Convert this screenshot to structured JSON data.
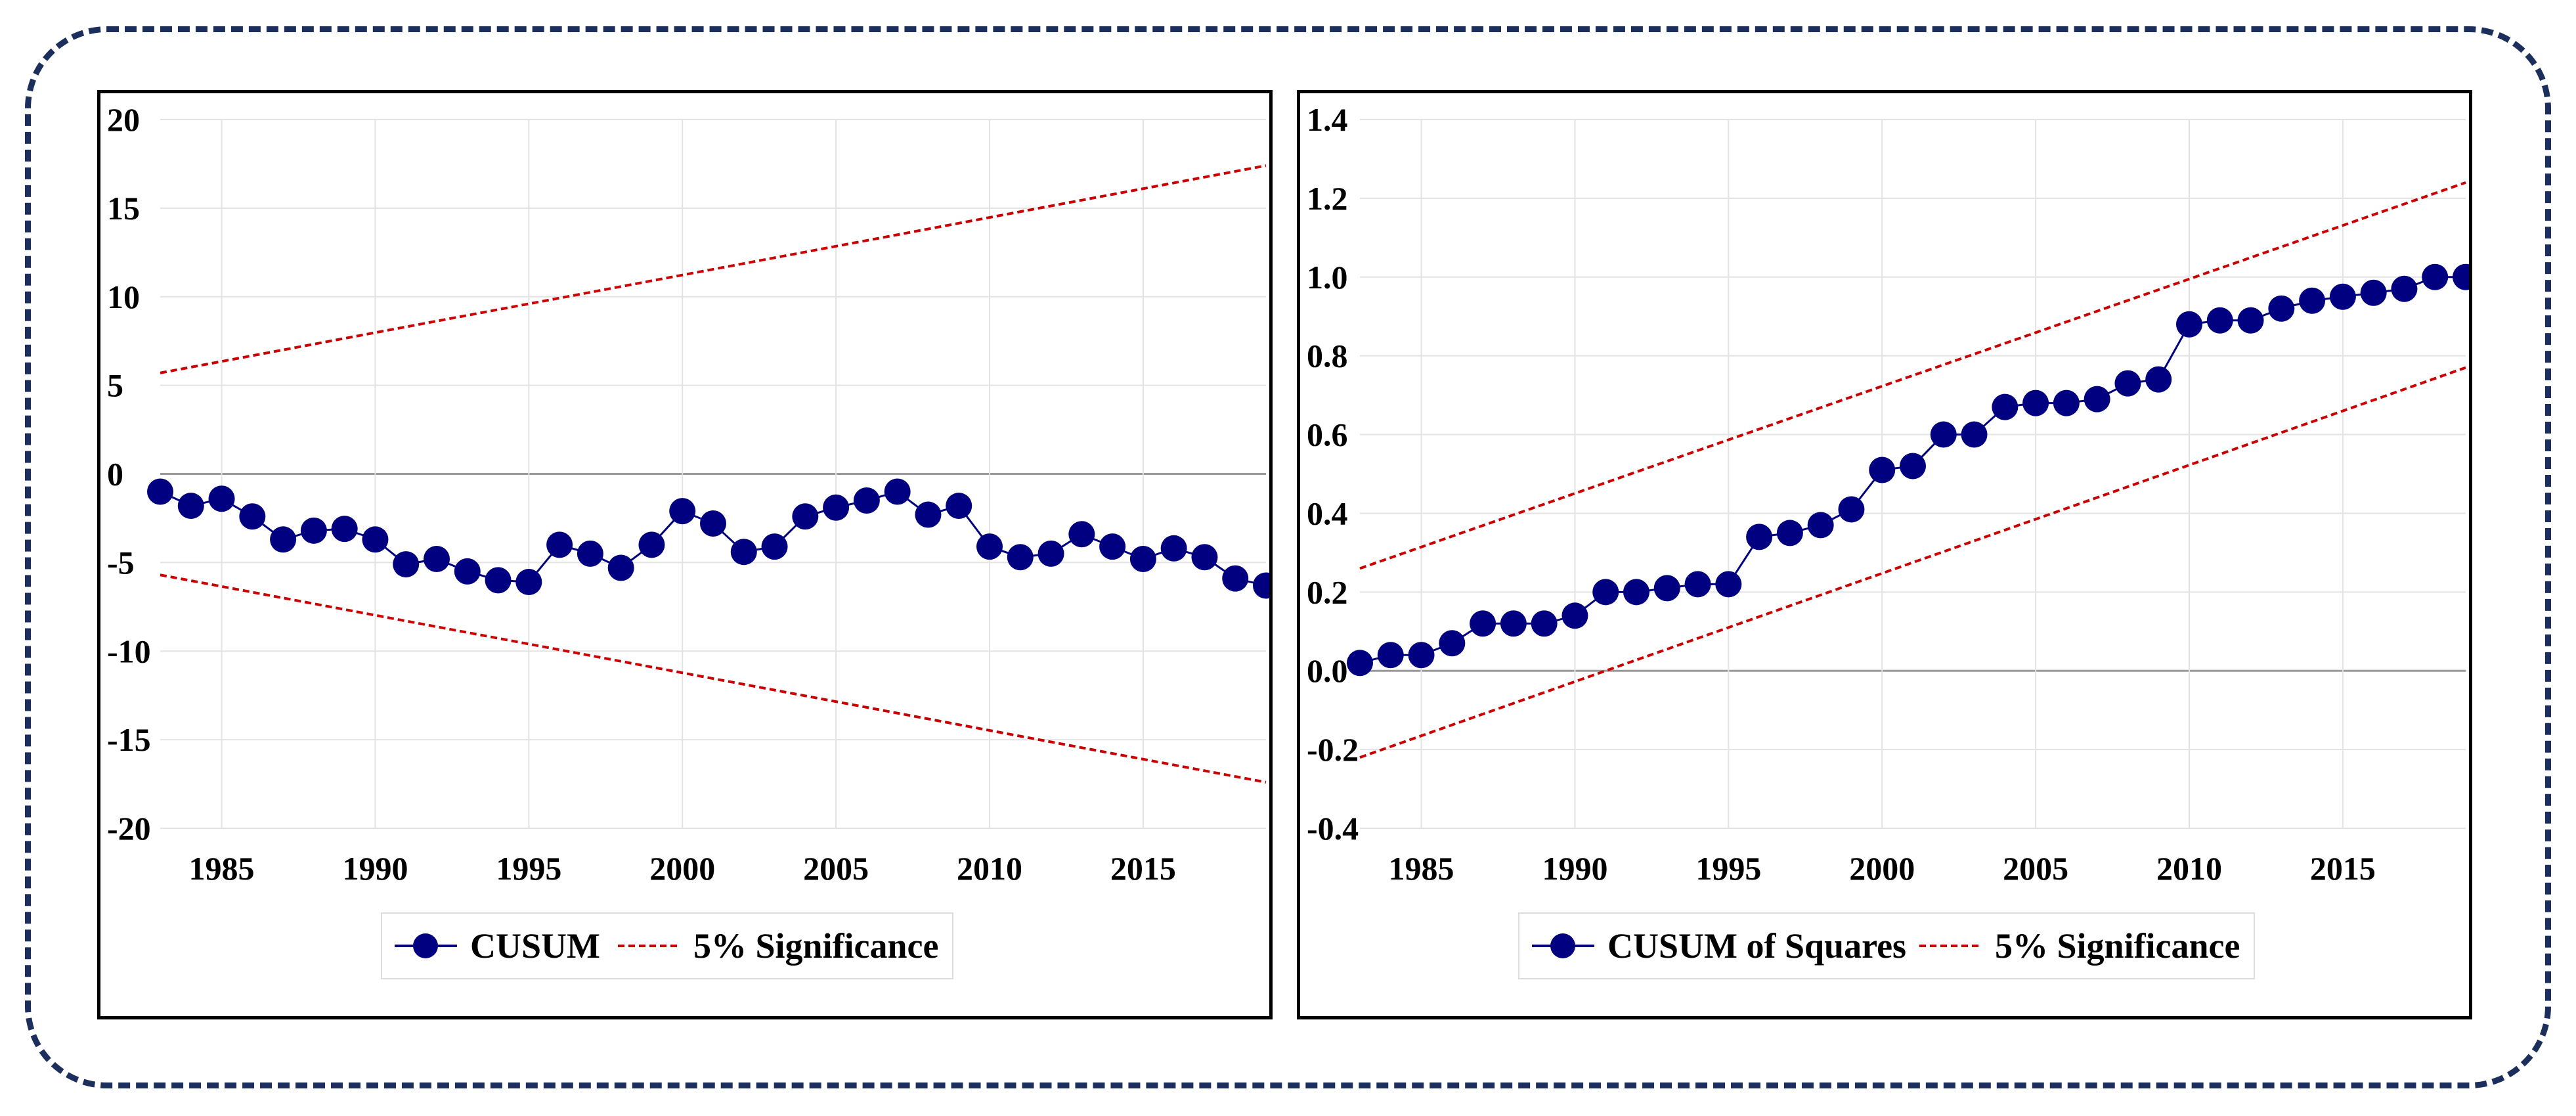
{
  "chart_data": [
    {
      "type": "line",
      "title": "",
      "xlabel": "",
      "ylabel": "",
      "xlim": [
        1983,
        2019
      ],
      "ylim": [
        -20,
        20
      ],
      "yticks": [
        20,
        15,
        10,
        5,
        0,
        -5,
        -10,
        -15,
        -20
      ],
      "ytick_labels": [
        "20",
        "15",
        "10",
        "5",
        "0",
        "-5",
        "-10",
        "-15",
        "-20"
      ],
      "xticks": [
        1985,
        1990,
        1995,
        2000,
        2005,
        2010,
        2015
      ],
      "xtick_labels": [
        "1985",
        "1990",
        "1995",
        "2000",
        "2005",
        "2010",
        "2015"
      ],
      "grid": true,
      "legend": [
        "CUSUM",
        "5% Significance"
      ],
      "legend_position": "bottom-center",
      "x": [
        1983,
        1984,
        1985,
        1986,
        1987,
        1988,
        1989,
        1990,
        1991,
        1992,
        1993,
        1994,
        1995,
        1996,
        1997,
        1998,
        1999,
        2000,
        2001,
        2002,
        2003,
        2004,
        2005,
        2006,
        2007,
        2008,
        2009,
        2010,
        2011,
        2012,
        2013,
        2014,
        2015,
        2016,
        2017,
        2018,
        2019
      ],
      "series": [
        {
          "name": "CUSUM",
          "color": "#000080",
          "values": [
            -1.0,
            -1.8,
            -1.4,
            -2.4,
            -3.7,
            -3.2,
            -3.1,
            -3.7,
            -5.1,
            -4.8,
            -5.5,
            -6.0,
            -6.1,
            -4.0,
            -4.5,
            -5.3,
            -4.0,
            -2.1,
            -2.8,
            -4.4,
            -4.1,
            -2.4,
            -1.9,
            -1.5,
            -1.0,
            -2.3,
            -1.8,
            -4.1,
            -4.7,
            -4.5,
            -3.4,
            -4.1,
            -4.8,
            -4.2,
            -4.7,
            -5.9,
            -6.3
          ]
        },
        {
          "name": "5% Significance upper",
          "color": "#cc0000",
          "values_at_xlim": [
            5.7,
            17.4
          ]
        },
        {
          "name": "5% Significance lower",
          "color": "#cc0000",
          "values_at_xlim": [
            -5.7,
            -17.4
          ]
        }
      ]
    },
    {
      "type": "line",
      "title": "",
      "xlabel": "",
      "ylabel": "",
      "xlim": [
        1983,
        2019
      ],
      "ylim": [
        -0.4,
        1.4
      ],
      "yticks": [
        1.4,
        1.2,
        1.0,
        0.8,
        0.6,
        0.4,
        0.2,
        0.0,
        -0.2,
        -0.4
      ],
      "ytick_labels": [
        "1.4",
        "1.2",
        "1.0",
        "0.8",
        "0.6",
        "0.4",
        "0.2",
        "0.0",
        "-0.2",
        "-0.4"
      ],
      "xticks": [
        1985,
        1990,
        1995,
        2000,
        2005,
        2010,
        2015
      ],
      "xtick_labels": [
        "1985",
        "1990",
        "1995",
        "2000",
        "2005",
        "2010",
        "2015"
      ],
      "grid": true,
      "legend": [
        "CUSUM of Squares",
        "5% Significance"
      ],
      "legend_position": "bottom-center",
      "x": [
        1983,
        1984,
        1985,
        1986,
        1987,
        1988,
        1989,
        1990,
        1991,
        1992,
        1993,
        1994,
        1995,
        1996,
        1997,
        1998,
        1999,
        2000,
        2001,
        2002,
        2003,
        2004,
        2005,
        2006,
        2007,
        2008,
        2009,
        2010,
        2011,
        2012,
        2013,
        2014,
        2015,
        2016,
        2017,
        2018,
        2019
      ],
      "series": [
        {
          "name": "CUSUM of Squares",
          "color": "#000080",
          "values": [
            0.02,
            0.04,
            0.04,
            0.07,
            0.12,
            0.12,
            0.12,
            0.14,
            0.2,
            0.2,
            0.21,
            0.22,
            0.22,
            0.34,
            0.35,
            0.37,
            0.41,
            0.51,
            0.52,
            0.6,
            0.6,
            0.67,
            0.68,
            0.68,
            0.69,
            0.73,
            0.74,
            0.88,
            0.89,
            0.89,
            0.92,
            0.94,
            0.95,
            0.96,
            0.97,
            1.0,
            1.0
          ]
        },
        {
          "name": "5% Significance upper",
          "color": "#cc0000",
          "values_at_xlim": [
            0.26,
            1.24
          ]
        },
        {
          "name": "5% Significance lower",
          "color": "#cc0000",
          "values_at_xlim": [
            -0.22,
            0.77
          ]
        }
      ]
    }
  ]
}
